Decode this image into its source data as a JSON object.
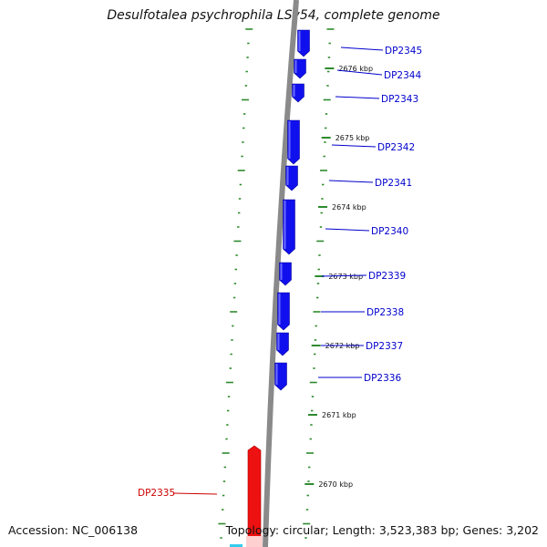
{
  "title": "Desulfotalea psychrophila LSv54, complete genome",
  "footer": {
    "accession": "Accession: NC_006138",
    "summary": "Topology: circular; Length: 3,523,383 bp; Genes: 3,202"
  },
  "colors": {
    "forward_gene": "#1010ee",
    "reverse_gene": "#ee1111",
    "backbone": "#8a8a8a",
    "tick": "#2e8b2e",
    "forward_label": "#0000cc",
    "reverse_label": "#cc0000"
  },
  "kbp_ticks": [
    "2676 kbp",
    "2675 kbp",
    "2674 kbp",
    "2673 kbp",
    "2672 kbp",
    "2671 kbp",
    "2670 kbp"
  ],
  "genes": {
    "forward": [
      {
        "name": "DP2345"
      },
      {
        "name": "DP2344"
      },
      {
        "name": "DP2343"
      },
      {
        "name": "DP2342"
      },
      {
        "name": "DP2341"
      },
      {
        "name": "DP2340"
      },
      {
        "name": "DP2339"
      },
      {
        "name": "DP2338"
      },
      {
        "name": "DP2337"
      },
      {
        "name": "DP2336"
      }
    ],
    "reverse": [
      {
        "name": "DP2335"
      }
    ]
  }
}
